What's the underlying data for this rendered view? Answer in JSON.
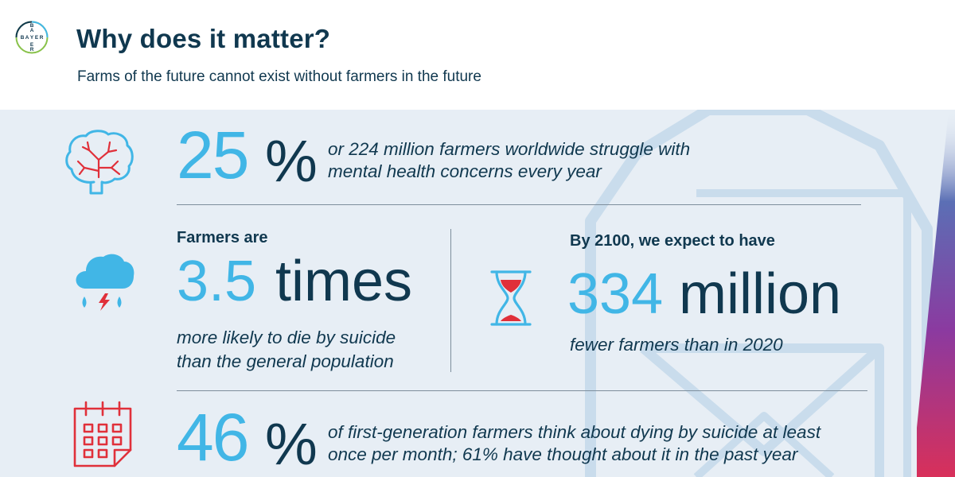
{
  "header": {
    "logo_text": "BAYER",
    "title": "Why does it matter?",
    "subtitle": "Farms of the future cannot exist without farmers in the future"
  },
  "stat1": {
    "number": "25",
    "unit": "%",
    "line1": "or 224 million farmers worldwide struggle with",
    "line2": "mental health concerns every year"
  },
  "stat2": {
    "lead": "Farmers are",
    "number": "3.5",
    "unit": "times",
    "line1": "more likely to die by suicide",
    "line2": "than the general population"
  },
  "stat3": {
    "lead": "By 2100, we expect to have",
    "number": "334",
    "unit": "million",
    "line1": "fewer farmers than in 2020"
  },
  "stat4": {
    "number": "46",
    "unit": "%",
    "line1": "of first-generation farmers think about dying by suicide at least",
    "line2": "once per month; 61% have thought about it in the past year"
  },
  "colors": {
    "navy": "#10384f",
    "cyan": "#41b6e6",
    "red": "#e0303a",
    "panel": "#e7eef5",
    "green": "#89c24b"
  },
  "icons": [
    "brain-icon",
    "storm-cloud-icon",
    "hourglass-icon",
    "calendar-icon"
  ]
}
